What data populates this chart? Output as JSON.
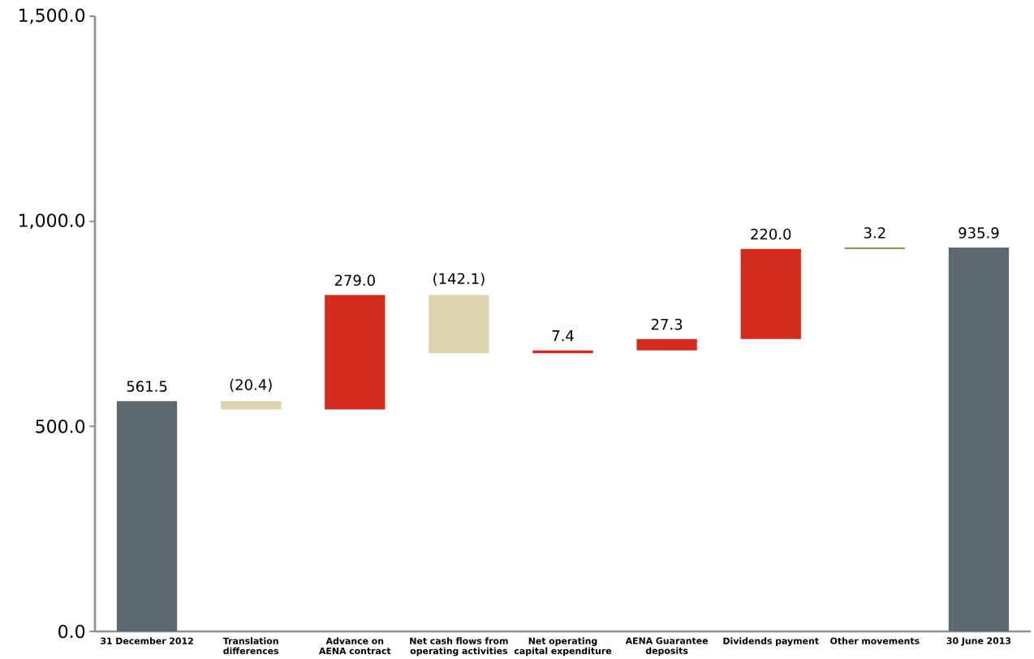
{
  "chart_data": {
    "type": "bar",
    "categories": [
      "31 December 2012",
      "Translation differences",
      "Advance on AENA contract",
      "Net cash flows from operating activities",
      "Net operating capital expenditure",
      "AENA Guarantee deposits",
      "Dividends payment",
      "Other movements",
      "30 June 2013"
    ],
    "values": [
      561.5,
      -20.4,
      279.0,
      -142.1,
      7.4,
      27.3,
      220.0,
      3.2,
      935.9
    ],
    "base": [
      0,
      561.5,
      541.1,
      820.1,
      678.0,
      685.4,
      712.7,
      932.7,
      0
    ],
    "value_labels": [
      "561.5",
      "(20.4)",
      "279.0",
      "(142.1)",
      "7.4",
      "27.3",
      "220.0",
      "3.2",
      "935.9"
    ],
    "colors": [
      "#5e6a72",
      "#ddd3ae",
      "#d52b1e",
      "#ddd3ae",
      "#d52b1e",
      "#d52b1e",
      "#d52b1e",
      "#8a7a2a",
      "#5e6a72"
    ],
    "ylim": [
      0,
      1500
    ],
    "yticks": [
      {
        "value": 0,
        "label": "0.0"
      },
      {
        "value": 500,
        "label": "500.0"
      },
      {
        "value": 1000,
        "label": "1,000.0"
      },
      {
        "value": 1500,
        "label": "1,500.0"
      }
    ],
    "grid": false
  }
}
